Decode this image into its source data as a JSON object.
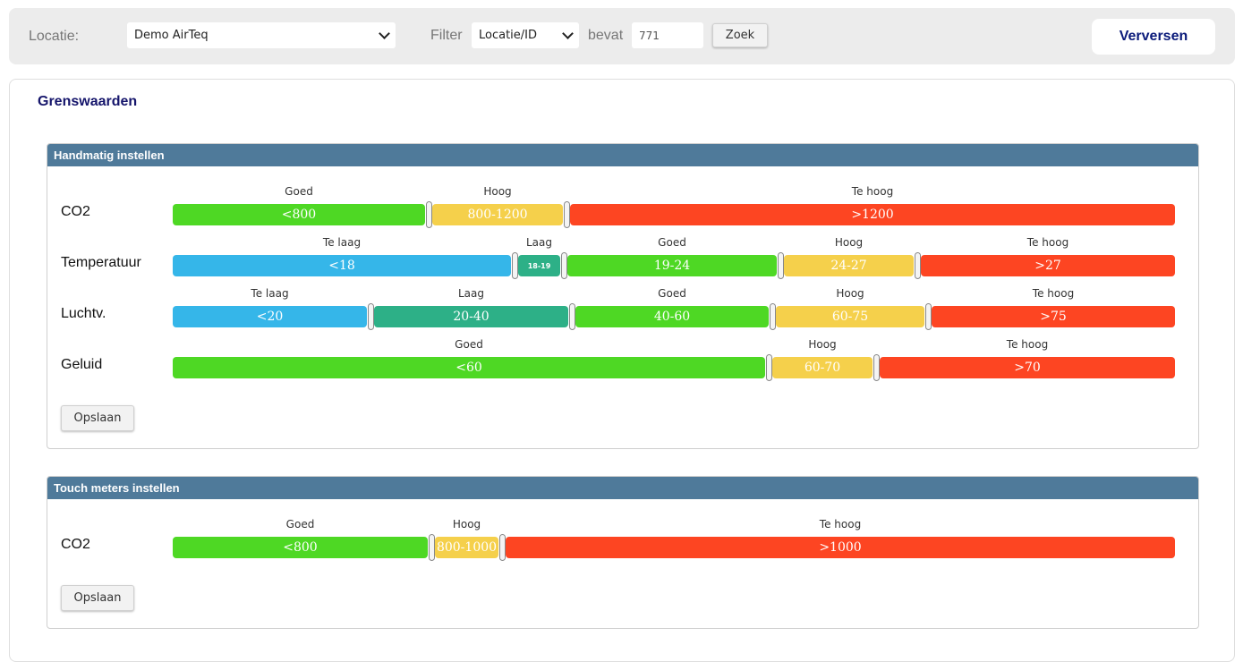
{
  "toolbar": {
    "locatie_label": "Locatie:",
    "locatie_value": "Demo AirTeq",
    "filter_label": "Filter",
    "filter_value": "Locatie/ID",
    "bevat_label": "bevat",
    "search_value": "771",
    "zoek_label": "Zoek",
    "refresh_label": "Verversen"
  },
  "card": {
    "title": "Grenswaarden"
  },
  "manual": {
    "title": "Handmatig instellen",
    "save_label": "Opslaan",
    "rows": [
      {
        "label": "CO2",
        "segments": [
          {
            "name": "Goed",
            "range": "<800",
            "color": "#4ed824"
          },
          {
            "name": "Hoog",
            "range": "800-1200",
            "color": "#f5d04b"
          },
          {
            "name": "Te hoog",
            "range": ">1200",
            "color": "#fd4522"
          }
        ]
      },
      {
        "label": "Temperatuur",
        "segments": [
          {
            "name": "Te laag",
            "range": "<18",
            "color": "#35b6e9"
          },
          {
            "name": "Laag",
            "range": "18-19",
            "color": "#2db087"
          },
          {
            "name": "Goed",
            "range": "19-24",
            "color": "#4ed824"
          },
          {
            "name": "Hoog",
            "range": "24-27",
            "color": "#f5d04b"
          },
          {
            "name": "Te hoog",
            "range": ">27",
            "color": "#fd4522"
          }
        ]
      },
      {
        "label": "Luchtv.",
        "segments": [
          {
            "name": "Te laag",
            "range": "<20",
            "color": "#35b6e9"
          },
          {
            "name": "Laag",
            "range": "20-40",
            "color": "#2db087"
          },
          {
            "name": "Goed",
            "range": "40-60",
            "color": "#4ed824"
          },
          {
            "name": "Hoog",
            "range": "60-75",
            "color": "#f5d04b"
          },
          {
            "name": "Te hoog",
            "range": ">75",
            "color": "#fd4522"
          }
        ]
      },
      {
        "label": "Geluid",
        "segments": [
          {
            "name": "Goed",
            "range": "<60",
            "color": "#4ed824"
          },
          {
            "name": "Hoog",
            "range": "60-70",
            "color": "#f5d04b"
          },
          {
            "name": "Te hoog",
            "range": ">70",
            "color": "#fd4522"
          }
        ]
      }
    ]
  },
  "touch": {
    "title": "Touch meters instellen",
    "save_label": "Opslaan",
    "rows": [
      {
        "label": "CO2",
        "segments": [
          {
            "name": "Goed",
            "range": "<800",
            "color": "#4ed824"
          },
          {
            "name": "Hoog",
            "range": "800-1000",
            "color": "#f5d04b"
          },
          {
            "name": "Te hoog",
            "range": ">1000",
            "color": "#fd4522"
          }
        ]
      }
    ]
  }
}
